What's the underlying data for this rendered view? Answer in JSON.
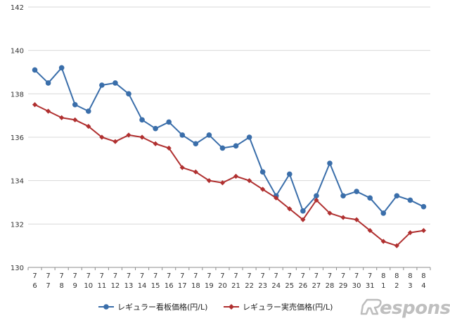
{
  "chart_data": {
    "type": "line",
    "title": "",
    "xlabel": "",
    "ylabel": "",
    "ylim": [
      130,
      142
    ],
    "yticks": [
      "130",
      "132",
      "134",
      "136",
      "138",
      "140",
      "142"
    ],
    "grid": true,
    "legend_position": "bottom",
    "categories": [
      {
        "month": "7",
        "day": "6"
      },
      {
        "month": "7",
        "day": "7"
      },
      {
        "month": "7",
        "day": "8"
      },
      {
        "month": "7",
        "day": "9"
      },
      {
        "month": "7",
        "day": "10"
      },
      {
        "month": "7",
        "day": "11"
      },
      {
        "month": "7",
        "day": "12"
      },
      {
        "month": "7",
        "day": "13"
      },
      {
        "month": "7",
        "day": "14"
      },
      {
        "month": "7",
        "day": "15"
      },
      {
        "month": "7",
        "day": "16"
      },
      {
        "month": "7",
        "day": "17"
      },
      {
        "month": "7",
        "day": "18"
      },
      {
        "month": "7",
        "day": "19"
      },
      {
        "month": "7",
        "day": "20"
      },
      {
        "month": "7",
        "day": "21"
      },
      {
        "month": "7",
        "day": "22"
      },
      {
        "month": "7",
        "day": "23"
      },
      {
        "month": "7",
        "day": "24"
      },
      {
        "month": "7",
        "day": "25"
      },
      {
        "month": "7",
        "day": "26"
      },
      {
        "month": "7",
        "day": "27"
      },
      {
        "month": "7",
        "day": "28"
      },
      {
        "month": "7",
        "day": "29"
      },
      {
        "month": "7",
        "day": "30"
      },
      {
        "month": "7",
        "day": "31"
      },
      {
        "month": "8",
        "day": "1"
      },
      {
        "month": "8",
        "day": "2"
      },
      {
        "month": "8",
        "day": "3"
      },
      {
        "month": "8",
        "day": "4"
      }
    ],
    "series": [
      {
        "name": "レギュラー看板価格(円/L)",
        "color": "#3a6eaa",
        "marker": "circle",
        "values": [
          139.1,
          138.5,
          139.2,
          137.5,
          137.2,
          138.4,
          138.5,
          138.0,
          136.8,
          136.4,
          136.7,
          136.1,
          135.7,
          136.1,
          135.5,
          135.6,
          136.0,
          134.4,
          133.3,
          134.3,
          132.6,
          133.3,
          134.8,
          133.3,
          133.5,
          133.2,
          132.5,
          133.3,
          133.1,
          132.8
        ]
      },
      {
        "name": "レギュラー実売価格(円/L)",
        "color": "#b03030",
        "marker": "diamond",
        "values": [
          137.5,
          137.2,
          136.9,
          136.8,
          136.5,
          136.0,
          135.8,
          136.1,
          136.0,
          135.7,
          135.5,
          134.6,
          134.4,
          134.0,
          133.9,
          134.2,
          134.0,
          133.6,
          133.2,
          132.7,
          132.2,
          133.1,
          132.5,
          132.3,
          132.2,
          131.7,
          131.2,
          131.0,
          131.6,
          131.7
        ]
      }
    ]
  },
  "watermark": {
    "text": "esponse."
  }
}
